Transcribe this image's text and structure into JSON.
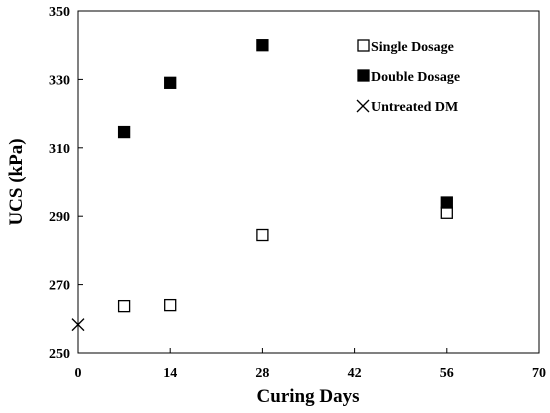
{
  "chart_data": {
    "type": "scatter",
    "xlabel": "Curing Days",
    "ylabel": "UCS (kPa)",
    "xlim": [
      0,
      70
    ],
    "ylim": [
      250,
      350
    ],
    "xticks": [
      0,
      14,
      28,
      42,
      56,
      70
    ],
    "yticks": [
      250,
      270,
      290,
      310,
      330,
      350
    ],
    "grid": false,
    "legend_position": "top-right",
    "series": [
      {
        "name": "Single Dosage",
        "marker": "open-square",
        "color": "#000000",
        "x": [
          7,
          14,
          28,
          56
        ],
        "y": [
          263.7,
          264,
          284.5,
          291
        ]
      },
      {
        "name": "Double Dosage",
        "marker": "filled-square",
        "color": "#000000",
        "x": [
          7,
          14,
          28,
          56
        ],
        "y": [
          314.6,
          329,
          340,
          294
        ]
      },
      {
        "name": "Untreated DM",
        "marker": "cross",
        "color": "#000000",
        "x": [
          0
        ],
        "y": [
          258.3
        ]
      }
    ]
  }
}
